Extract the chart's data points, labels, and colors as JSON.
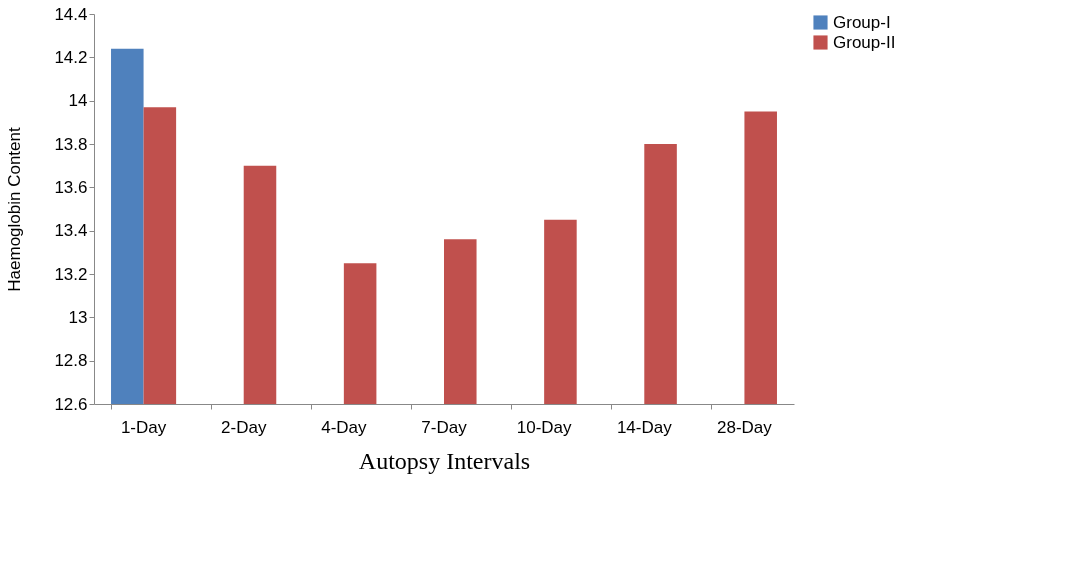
{
  "chart_data": {
    "type": "bar",
    "xlabel": "Autopsy Intervals",
    "ylabel": "Haemoglobin Content",
    "categories": [
      "1-Day",
      "2-Day",
      "4-Day",
      "7-Day",
      "10-Day",
      "14-Day",
      "28-Day"
    ],
    "series": [
      {
        "name": "Group-I",
        "color": "#4f81bd",
        "values": [
          14.24,
          null,
          null,
          null,
          null,
          null,
          null
        ]
      },
      {
        "name": "Group-II",
        "color": "#c0504d",
        "values": [
          13.97,
          13.7,
          13.25,
          13.36,
          13.45,
          13.8,
          13.95
        ]
      }
    ],
    "ylim": [
      12.6,
      14.4
    ],
    "yticks": [
      12.6,
      12.8,
      13,
      13.2,
      13.4,
      13.6,
      13.8,
      14,
      14.2,
      14.4
    ],
    "grid": false,
    "legend": "right"
  }
}
